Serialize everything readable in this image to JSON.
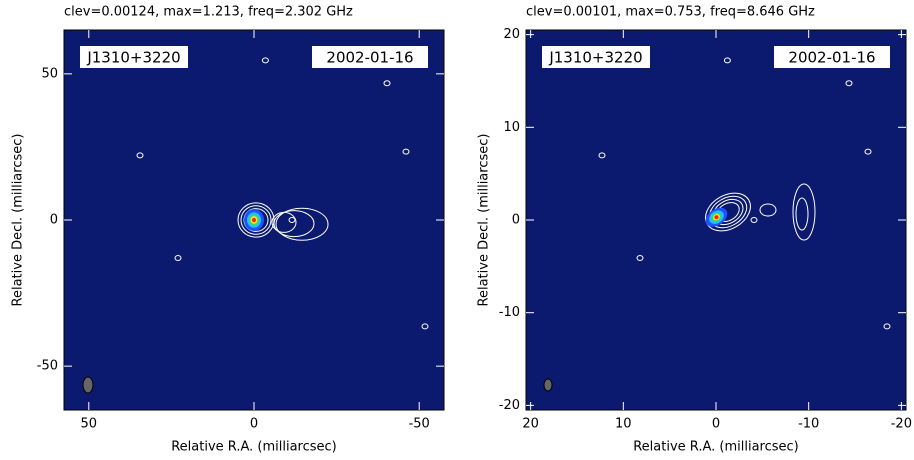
{
  "chart_data": [
    {
      "type": "contour",
      "title": "clev=0.00124, max=1.213, freq=2.302 GHz",
      "source": "J1310+3220",
      "date": "2002-01-16",
      "xlabel": "Relative R.A. (milliarcsec)",
      "ylabel": "Relative Decl. (milliarcsec)",
      "xlim": [
        57.5,
        -57.5
      ],
      "ylim": [
        -65,
        65
      ],
      "xticks": [
        50,
        0,
        -50
      ],
      "yticks": [
        -50,
        0,
        50
      ],
      "background": "#0b1a6e"
    },
    {
      "type": "contour",
      "title": "clev=0.00101, max=0.753, freq=8.646 GHz",
      "source": "J1310+3220",
      "date": "2002-01-16",
      "xlabel": "Relative R.A. (milliarcsec)",
      "ylabel": "Relative Decl. (milliarcsec)",
      "xlim": [
        20.5,
        -20.5
      ],
      "ylim": [
        -20.5,
        20.5
      ],
      "xticks": [
        20,
        10,
        0,
        -10,
        -20
      ],
      "yticks": [
        -20,
        -10,
        0,
        10,
        20
      ],
      "background": "#0b1a6e"
    }
  ]
}
